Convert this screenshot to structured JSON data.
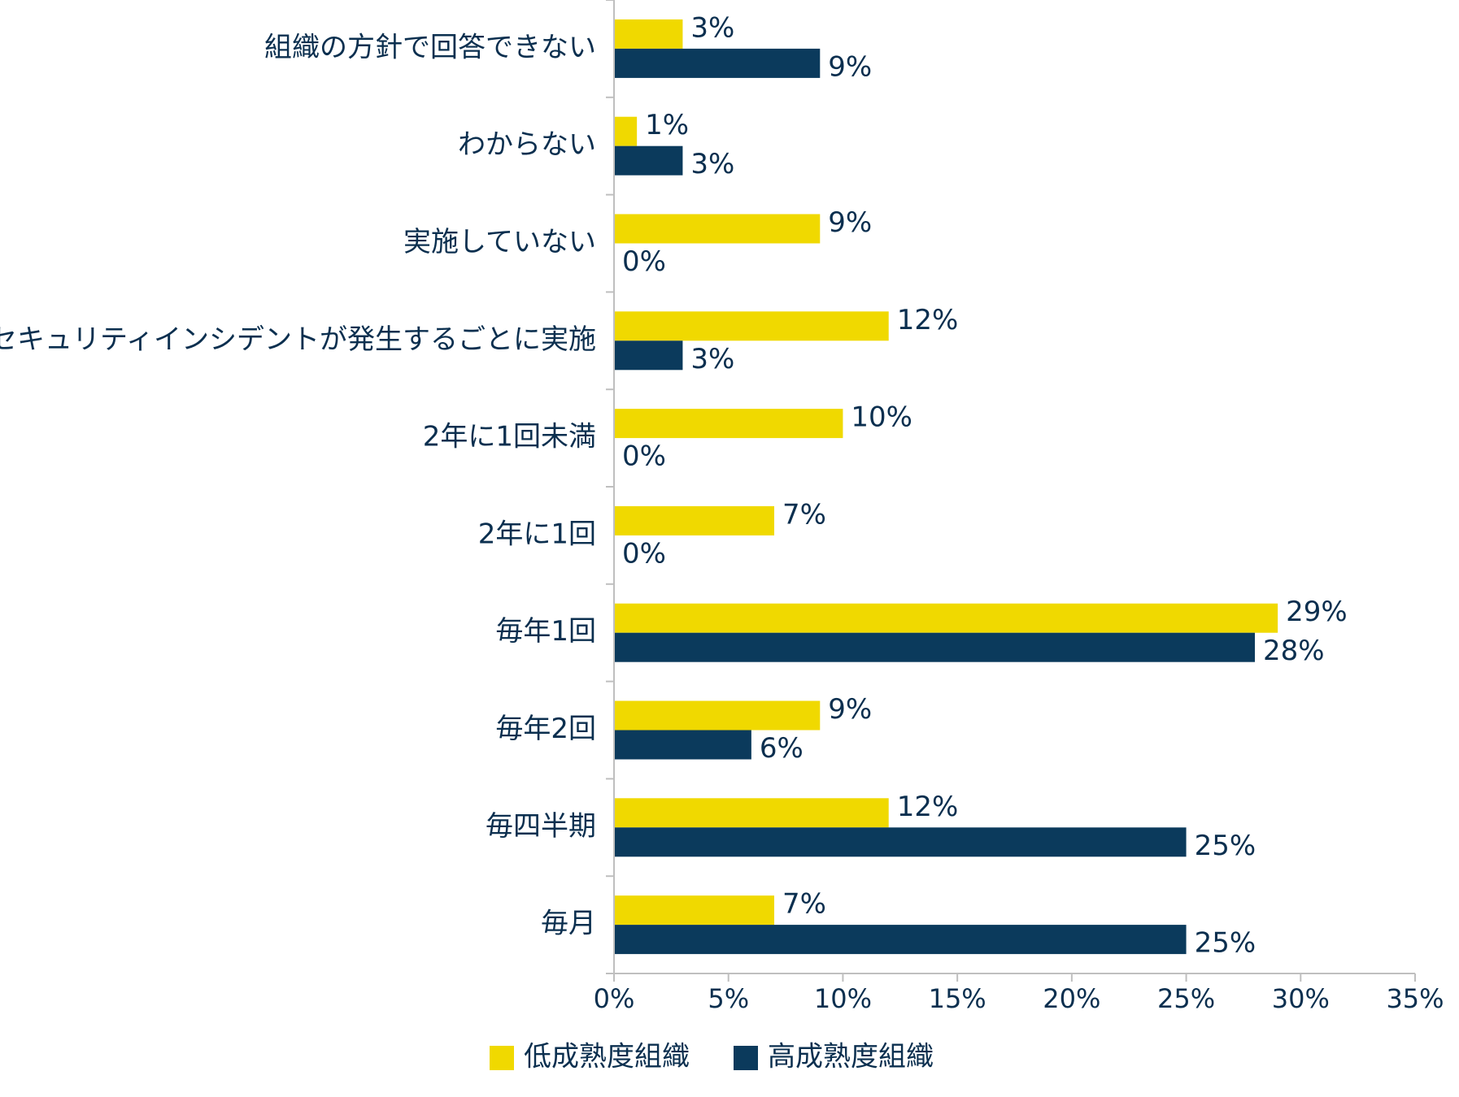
{
  "chart_data": {
    "type": "bar",
    "orientation": "horizontal",
    "categories": [
      "組織の方針で回答できない",
      "わからない",
      "実施していない",
      "セキュリティインシデントが発生するごとに実施",
      "2年に1回未満",
      "2年に1回",
      "毎年1回",
      "毎年2回",
      "毎四半期",
      "毎月"
    ],
    "series": [
      {
        "name": "低成熟度組織",
        "color": "#f0d900",
        "values": [
          3,
          1,
          9,
          12,
          10,
          7,
          29,
          9,
          12,
          7
        ],
        "labels": [
          "3%",
          "1%",
          "9%",
          "12%",
          "10%",
          "7%",
          "29%",
          "9%",
          "12%",
          "7%"
        ]
      },
      {
        "name": "高成熟度組織",
        "color": "#0b3a5c",
        "values": [
          9,
          3,
          0,
          3,
          0,
          0,
          28,
          6,
          25,
          25
        ],
        "labels": [
          "9%",
          "3%",
          "0%",
          "3%",
          "0%",
          "0%",
          "28%",
          "6%",
          "25%",
          "25%"
        ]
      }
    ],
    "xlim": [
      0,
      35
    ],
    "xticks": [
      0,
      5,
      10,
      15,
      20,
      25,
      30,
      35
    ],
    "xtick_labels": [
      "0%",
      "5%",
      "10%",
      "15%",
      "20%",
      "25%",
      "30%",
      "35%"
    ],
    "legend": "bottom-center",
    "grid": false,
    "text_color": "#0b2f4f",
    "axis_color": "#bfbfbf"
  }
}
